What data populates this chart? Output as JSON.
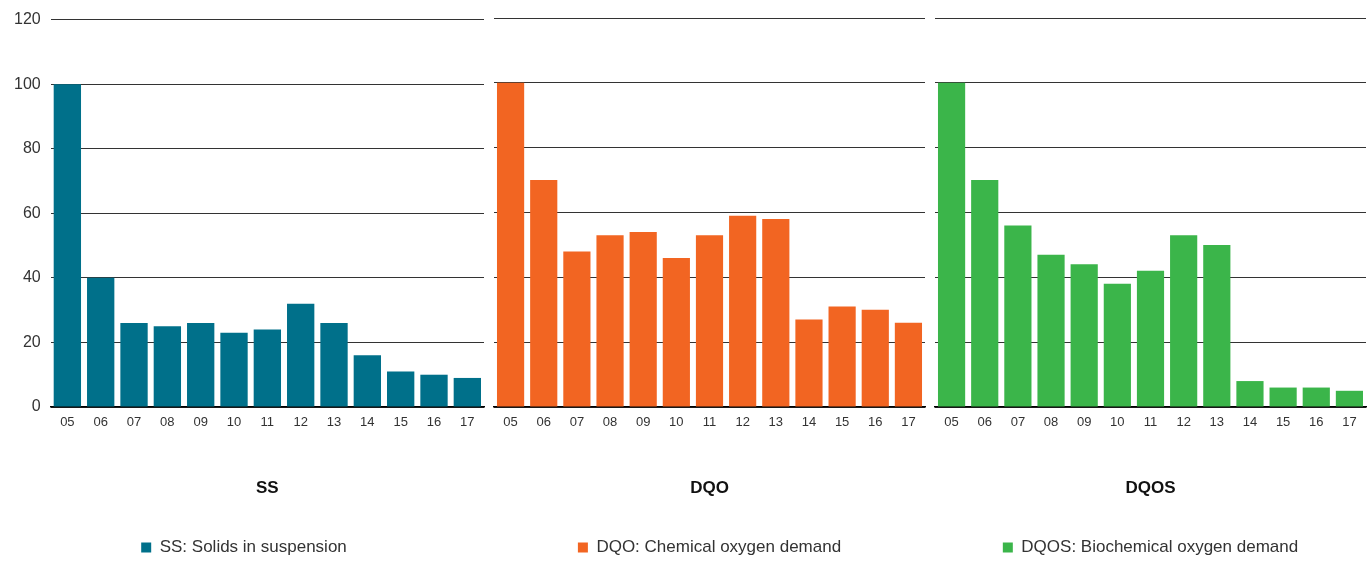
{
  "chart_data": [
    {
      "type": "bar",
      "xlabel": "SS",
      "categories": [
        "05",
        "06",
        "07",
        "08",
        "09",
        "10",
        "11",
        "12",
        "13",
        "14",
        "15",
        "16",
        "17"
      ],
      "series": [
        {
          "name": "SS: Solids in suspension",
          "color": "#00708a",
          "values": [
            100,
            40,
            26,
            25,
            26,
            23,
            24,
            32,
            26,
            16,
            11,
            10,
            9
          ]
        }
      ],
      "ylim": [
        0,
        120
      ],
      "yticks": [
        0,
        20,
        40,
        60,
        80,
        100,
        120
      ],
      "grid": "y",
      "legend": "bottom"
    },
    {
      "type": "bar",
      "xlabel": "DQO",
      "categories": [
        "05",
        "06",
        "07",
        "08",
        "09",
        "10",
        "11",
        "12",
        "13",
        "14",
        "15",
        "16",
        "17"
      ],
      "series": [
        {
          "name": "DQO: Chemical oxygen demand",
          "color": "#f26522",
          "values": [
            100,
            70,
            48,
            53,
            54,
            46,
            53,
            59,
            58,
            27,
            31,
            30,
            26
          ]
        }
      ],
      "ylim": [
        0,
        120
      ],
      "yticks": [
        0,
        20,
        40,
        60,
        80,
        100,
        120
      ],
      "grid": "y",
      "legend": "bottom",
      "tick_labels": "x"
    },
    {
      "type": "bar",
      "xlabel": "DQOS",
      "categories": [
        "05",
        "06",
        "07",
        "08",
        "09",
        "10",
        "11",
        "12",
        "13",
        "14",
        "15",
        "16",
        "17"
      ],
      "series": [
        {
          "name": "DQOS: Biochemical oxygen demand",
          "color": "#3bb54a",
          "values": [
            100,
            70,
            56,
            47,
            44,
            38,
            42,
            53,
            50,
            8,
            6,
            6,
            5
          ]
        }
      ],
      "ylim": [
        0,
        120
      ],
      "yticks": [
        0,
        20,
        40,
        60,
        80,
        100,
        120
      ],
      "grid": "y",
      "legend": "bottom",
      "tick_labels": "x"
    }
  ]
}
